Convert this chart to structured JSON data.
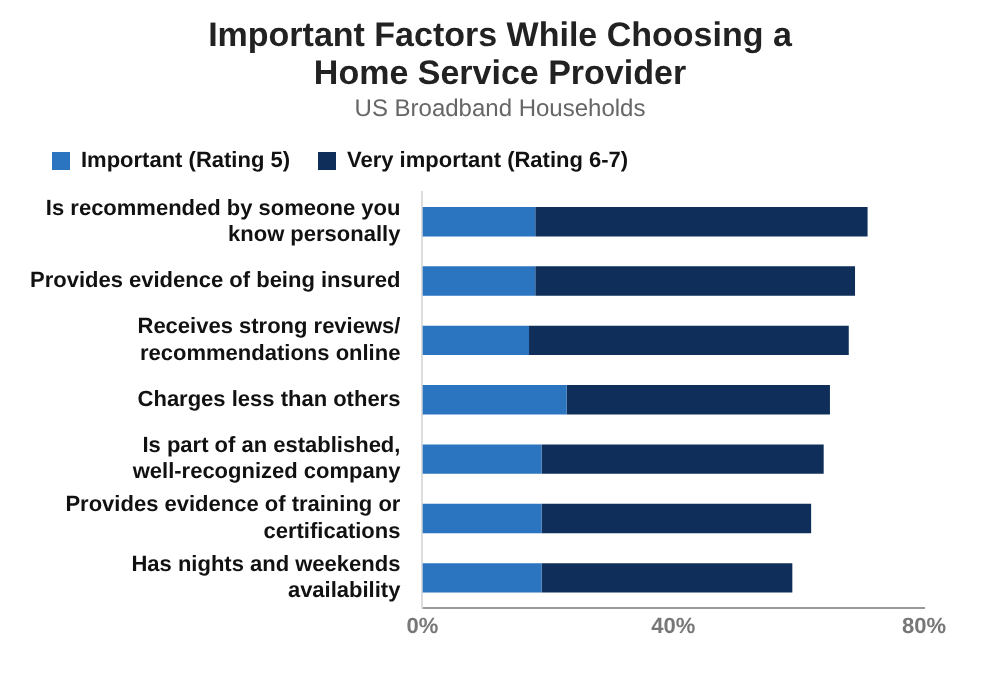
{
  "chart_data": {
    "type": "bar",
    "orientation": "horizontal",
    "stacked": true,
    "title": "Important Factors While Choosing a Home Service Provider",
    "subtitle": "US Broadband Households",
    "categories": [
      "Is recommended by someone you know personally",
      "Provides evidence of being insured",
      "Receives strong reviews/ recommendations online",
      "Charges less than others",
      "Is part of an established, well-recognized company",
      "Provides evidence of training or certifications",
      "Has nights and weekends availability"
    ],
    "series": [
      {
        "name": "Important (Rating 5)",
        "color": "#2a74c0",
        "values": [
          18,
          18,
          17,
          23,
          19,
          19,
          19
        ]
      },
      {
        "name": "Very important (Rating 6-7)",
        "color": "#0f2f5a",
        "values": [
          53,
          51,
          51,
          42,
          45,
          43,
          40
        ]
      }
    ],
    "xlim": [
      0,
      80
    ],
    "xticks": [
      {
        "value": 0,
        "label": "0%"
      },
      {
        "value": 40,
        "label": "40%"
      },
      {
        "value": 80,
        "label": "80%"
      }
    ],
    "grid": false,
    "legend": "top"
  }
}
